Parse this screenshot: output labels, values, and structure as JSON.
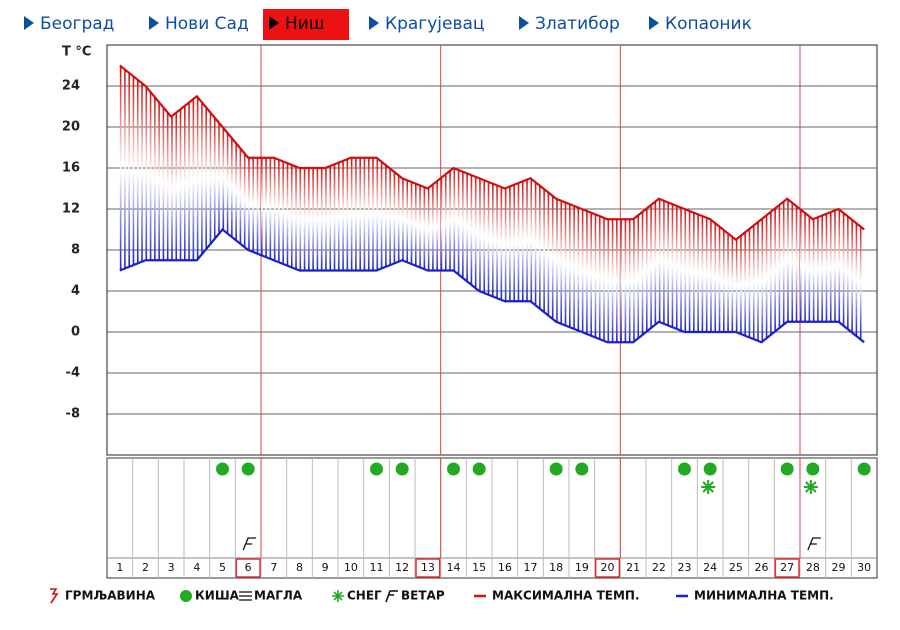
{
  "nav": {
    "items": [
      "Београд",
      "Нови Сад",
      "Ниш",
      "Крагујевац",
      "Златибор",
      "Копаоник"
    ],
    "selected": 2
  },
  "chart_data": {
    "type": "line",
    "ylabel": "T °C",
    "categories": [
      "1",
      "2",
      "3",
      "4",
      "5",
      "6",
      "7",
      "8",
      "9",
      "10",
      "11",
      "12",
      "13",
      "14",
      "15",
      "16",
      "17",
      "18",
      "19",
      "20",
      "21",
      "22",
      "23",
      "24",
      "25",
      "26",
      "27",
      "28",
      "29",
      "30"
    ],
    "series": [
      {
        "name": "МАКСИМАЛНА ТЕМП.",
        "color": "#d01010",
        "values": [
          26,
          24,
          21,
          23,
          20,
          17,
          17,
          16,
          16,
          17,
          17,
          15,
          14,
          16,
          15,
          14,
          15,
          13,
          12,
          11,
          11,
          13,
          12,
          11,
          9,
          11,
          13,
          11,
          12,
          10
        ]
      },
      {
        "name": "МИНИМАЛНА ТЕМП.",
        "color": "#1a22c8",
        "values": [
          6,
          7,
          7,
          7,
          10,
          8,
          7,
          6,
          6,
          6,
          6,
          7,
          6,
          6,
          4,
          3,
          3,
          1,
          0,
          -1,
          -1,
          1,
          0,
          0,
          0,
          -1,
          1,
          1,
          1,
          -1
        ]
      }
    ],
    "ylim": [
      -12,
      28
    ],
    "yticks": [
      24,
      20,
      16,
      12,
      8,
      4,
      0,
      -4,
      -8
    ],
    "grid": true,
    "highlight_days": [
      6,
      13,
      20,
      27
    ],
    "weather": {
      "rain": [
        5,
        6,
        11,
        12,
        14,
        15,
        18,
        19,
        23,
        24,
        27,
        28,
        30
      ],
      "snow": [
        24,
        28
      ],
      "wind": [
        6,
        28
      ]
    },
    "legend": [
      "ГРМЉАВИНА",
      "КИША",
      "МАГЛА",
      "СНЕГ",
      "ВЕТАР"
    ]
  }
}
